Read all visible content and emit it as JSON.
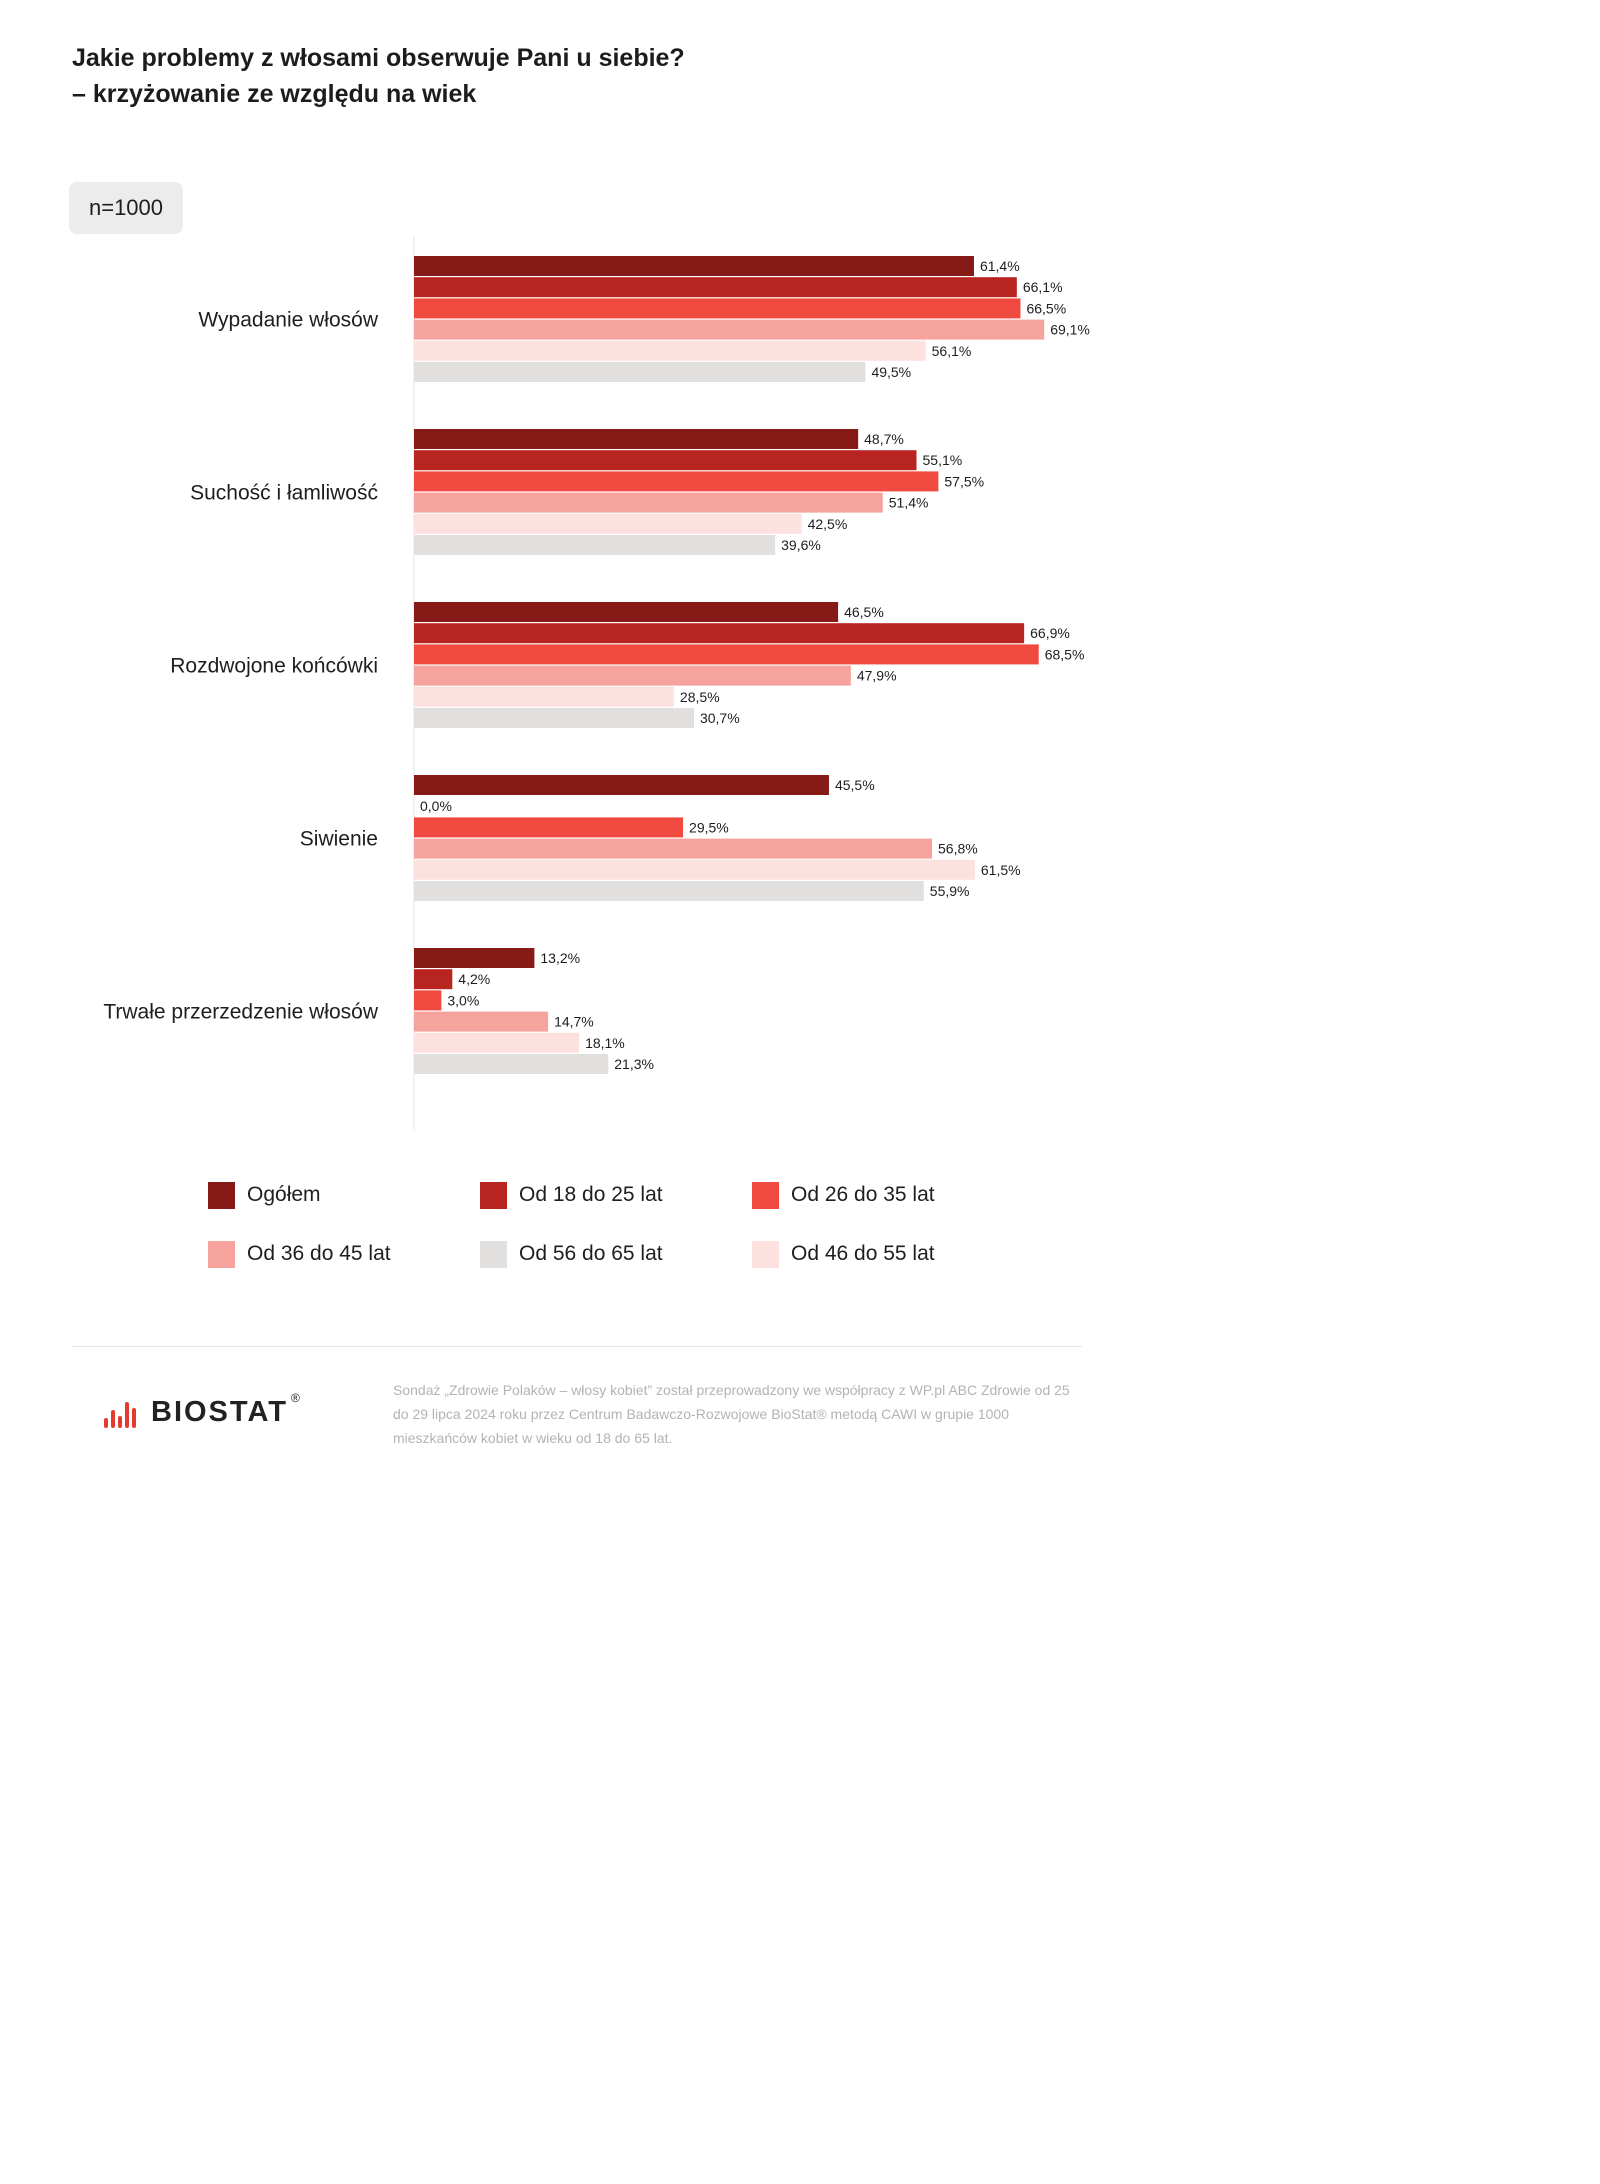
{
  "title_line1": "Jakie problemy z włosami obserwuje Pani u siebie?",
  "title_line2": "– krzyżowanie ze względu na wiek",
  "sample_badge": "n=1000",
  "chart_data": {
    "type": "bar",
    "orientation": "horizontal",
    "title": "Jakie problemy z włosami obserwuje Pani u siebie? – krzyżowanie ze względu na wiek",
    "xlabel": "",
    "ylabel": "",
    "xlim": [
      0,
      100
    ],
    "grid": false,
    "legend_position": "bottom",
    "value_format": "percent, one decimal, comma separator",
    "categories": [
      "Wypadanie włosów",
      "Suchość i łamliwość",
      "Rozdwojone końcówki",
      "Siwienie",
      "Trwałe przerzedzenie włosów"
    ],
    "series": [
      {
        "name": "Ogółem",
        "color": "#851a16",
        "values": [
          61.4,
          48.7,
          46.5,
          45.5,
          13.2
        ],
        "labels": [
          "61,4%",
          "48,7%",
          "46,5%",
          "45,5%",
          "13,2%"
        ]
      },
      {
        "name": "Od 18 do 25 lat",
        "color": "#b8241f",
        "values": [
          66.1,
          55.1,
          66.9,
          0.0,
          4.2
        ],
        "labels": [
          "66,1%",
          "55,1%",
          "66,9%",
          "0,0%",
          "4,2%"
        ]
      },
      {
        "name": "Od 26 do 35 lat",
        "color": "#f04a40",
        "values": [
          66.5,
          57.5,
          68.5,
          29.5,
          3.0
        ],
        "labels": [
          "66,5%",
          "57,5%",
          "68,5%",
          "29,5%",
          "3,0%"
        ]
      },
      {
        "name": "Od 36 do 45 lat",
        "color": "#f6a39d",
        "values": [
          69.1,
          51.4,
          47.9,
          56.8,
          14.7
        ],
        "labels": [
          "69,1%",
          "51,4%",
          "47,9%",
          "56,8%",
          "14,7%"
        ]
      },
      {
        "name": "Od 46 do 55 lat",
        "color": "#fde1df",
        "values": [
          56.1,
          42.5,
          28.5,
          61.5,
          18.1
        ],
        "labels": [
          "56,1%",
          "42,5%",
          "28,5%",
          "61,5%",
          "18,1%"
        ]
      },
      {
        "name": "Od 56 do 65 lat",
        "color": "#e1e0df",
        "values": [
          49.5,
          39.6,
          30.7,
          55.9,
          21.3
        ],
        "labels": [
          "49,5%",
          "39,6%",
          "30,7%",
          "55,9%",
          "21,3%"
        ]
      }
    ]
  },
  "legend": [
    {
      "label": "Ogółem",
      "color": "#851a16"
    },
    {
      "label": "Od 18 do 25 lat",
      "color": "#b8241f"
    },
    {
      "label": "Od 26 do 35 lat",
      "color": "#f04a40"
    },
    {
      "label": "Od 36 do 45 lat",
      "color": "#f6a39d"
    },
    {
      "label": "Od 56 do 65 lat",
      "color": "#e1e0df"
    },
    {
      "label": "Od 46 do 55 lat",
      "color": "#fde1df"
    }
  ],
  "logo": {
    "text": "BIOSTAT",
    "reg": "®"
  },
  "footnote": "Sondaż „Zdrowie Polaków – włosy kobiet” został przeprowadzony we współpracy z WP.pl ABC Zdrowie od 25 do 29 lipca 2024 roku przez Centrum Badawczo-Rozwojowe BioStat® metodą CAWI w grupie 1000 mieszkańców kobiet w wieku od 18 do 65 lat."
}
